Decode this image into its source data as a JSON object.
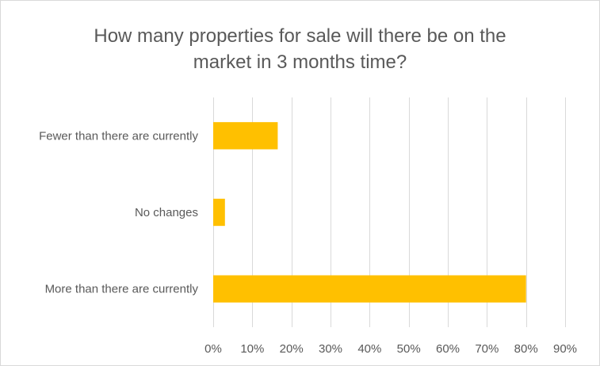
{
  "chart_data": {
    "type": "bar",
    "orientation": "horizontal",
    "title_lines": [
      "How many properties for sale will there be on the",
      "market in 3 months time?"
    ],
    "categories": [
      "Fewer than there are currently",
      "No changes",
      "More than there are currently"
    ],
    "values": [
      0.165,
      0.03,
      0.8
    ],
    "xlim": [
      0,
      0.9
    ],
    "xticks": [
      0,
      0.1,
      0.2,
      0.3,
      0.4,
      0.5,
      0.6,
      0.7,
      0.8,
      0.9
    ],
    "xtick_labels": [
      "0%",
      "10%",
      "20%",
      "30%",
      "40%",
      "50%",
      "60%",
      "70%",
      "80%",
      "90%"
    ],
    "grid": true,
    "bar_color": "#FFC000",
    "grid_color": "#D9D9D9",
    "text_color": "#595959"
  }
}
